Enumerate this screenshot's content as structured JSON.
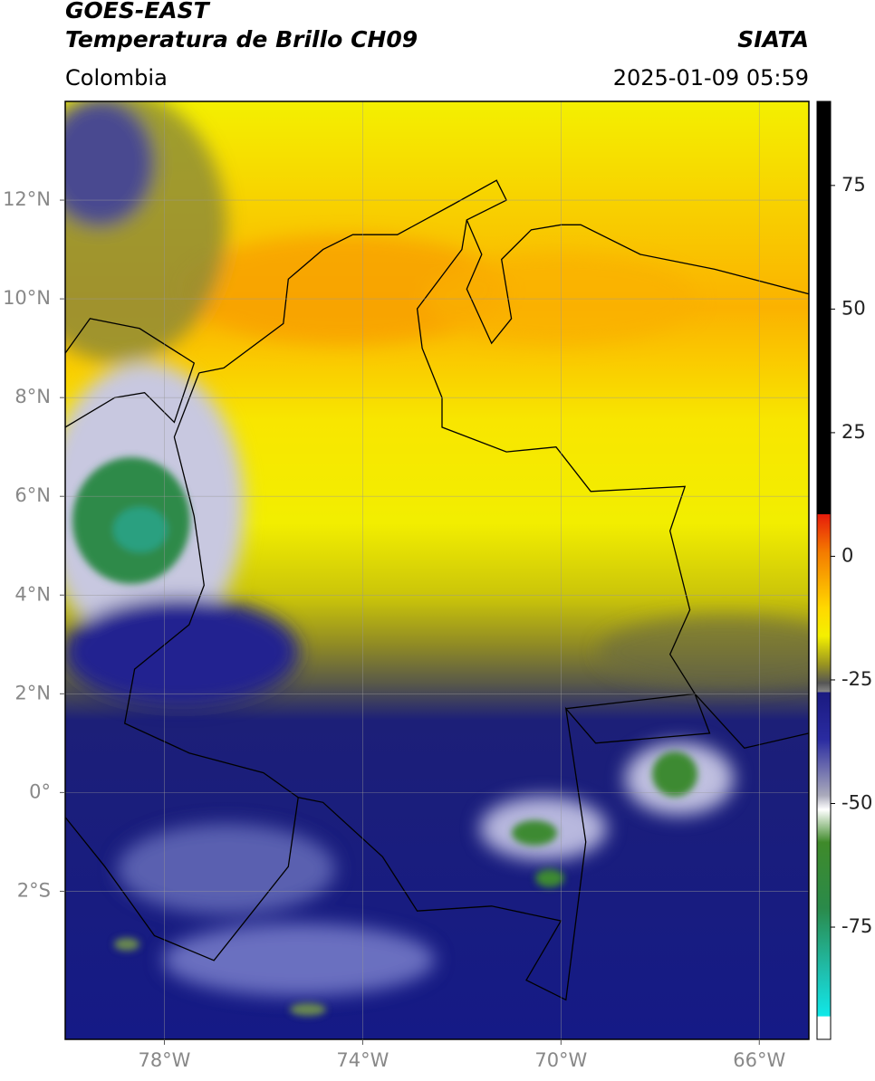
{
  "header": {
    "title": "GOES-EAST",
    "subtitle": "Temperatura de Brillo CH09",
    "source": "SIATA",
    "region": "Colombia",
    "datetime": "2025-01-09 05:59"
  },
  "map": {
    "xlim": [
      -80,
      -65
    ],
    "ylim": [
      -5,
      14
    ],
    "xticks": [
      {
        "value": -78,
        "label": "78°W"
      },
      {
        "value": -74,
        "label": "74°W"
      },
      {
        "value": -70,
        "label": "70°W"
      },
      {
        "value": -66,
        "label": "66°W"
      }
    ],
    "yticks": [
      {
        "value": 12,
        "label": "12°N"
      },
      {
        "value": 10,
        "label": "10°N"
      },
      {
        "value": 8,
        "label": "8°N"
      },
      {
        "value": 6,
        "label": "6°N"
      },
      {
        "value": 4,
        "label": "4°N"
      },
      {
        "value": 2,
        "label": "2°N"
      },
      {
        "value": 0,
        "label": "0°"
      },
      {
        "value": -2,
        "label": "2°S"
      }
    ],
    "grid": true
  },
  "colorbar": {
    "lim": [
      -97.7,
      92
    ],
    "ticks": [
      75,
      50,
      25,
      0,
      -25,
      -50,
      -75
    ]
  }
}
